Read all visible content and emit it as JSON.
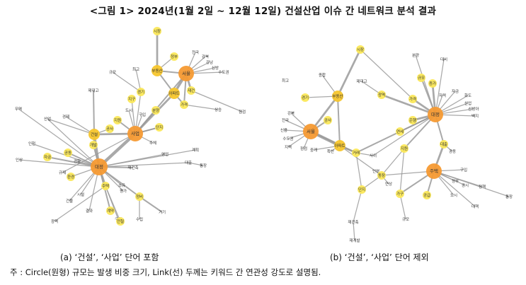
{
  "title": "<그림 1> 2024년(1월 2일 ~ 12월 12일) 건설산업 이슈 간 네트워크 분석 결과",
  "captions": {
    "a": "(a) ‘건설’, ‘사업’ 단어 포함",
    "b": "(b) ‘건설’, ‘사업’ 단어 제외"
  },
  "note": "주 : Circle(원형) 규모는 발생 비중 크기, Link(선) 두께는 키워드 간 연관성 강도로 설명됨.",
  "colors": {
    "hub": "#f59a33",
    "mid": "#f7c62d",
    "small": "#fbe85a",
    "edge": "#9a9a9a",
    "label": "#333333"
  },
  "graph_a": {
    "nodes": [
      {
        "id": "a_sijang",
        "label": "시장",
        "size": 1
      },
      {
        "id": "a_jeongbu",
        "label": "정부",
        "size": 1
      },
      {
        "id": "a_bubyeon",
        "label": "부동산",
        "size": 2
      },
      {
        "id": "a_seoul",
        "label": "서울",
        "size": 3
      },
      {
        "id": "a_jeonguk",
        "label": "전국",
        "size": 0
      },
      {
        "id": "a_gangbuk",
        "label": "강북",
        "size": 0
      },
      {
        "id": "a_gangnam",
        "label": "강남",
        "size": 0
      },
      {
        "id": "a_sinbang",
        "label": "신방",
        "size": 0
      },
      {
        "id": "a_sudogwon",
        "label": "수도권",
        "size": 0
      },
      {
        "id": "a_aparteu",
        "label": "아파트",
        "size": 2
      },
      {
        "id": "a_jaegeon",
        "label": "재건",
        "size": 1
      },
      {
        "id": "a_gagyeok",
        "label": "가격",
        "size": 1
      },
      {
        "id": "a_byeonghwa",
        "label": "상승",
        "size": 0
      },
      {
        "id": "a_jeomgeom",
        "label": "점검",
        "size": 0
      },
      {
        "id": "a_gyumo",
        "label": "규모",
        "size": 0
      },
      {
        "id": "a_choegoe",
        "label": "최고",
        "size": 0
      },
      {
        "id": "a_jedaego",
        "label": "제대고",
        "size": 0
      },
      {
        "id": "a_gyeonggi",
        "label": "경기",
        "size": 1
      },
      {
        "id": "a_jigu",
        "label": "지구",
        "size": 1
      },
      {
        "id": "a_bunyang",
        "label": "분양",
        "size": 1
      },
      {
        "id": "a_muyeok",
        "label": "무역",
        "size": 0
      },
      {
        "id": "a_sanup",
        "label": "산업",
        "size": 0
      },
      {
        "id": "a_gyeongje",
        "label": "경제",
        "size": 0
      },
      {
        "id": "a_jiwon",
        "label": "지원",
        "size": 1
      },
      {
        "id": "a_gongsa",
        "label": "공사",
        "size": 1
      },
      {
        "id": "a_doshi",
        "label": "도시",
        "size": 0
      },
      {
        "id": "a_gubuk",
        "label": "구입",
        "size": 0
      },
      {
        "id": "a_danji",
        "label": "단지",
        "size": 1
      },
      {
        "id": "a_geonseol",
        "label": "건설",
        "size": 2
      },
      {
        "id": "a_saeop",
        "label": "사업",
        "size": 3
      },
      {
        "id": "a_gaebal",
        "label": "개발",
        "size": 1
      },
      {
        "id": "a_juche",
        "label": "주체",
        "size": 0
      },
      {
        "id": "a_yeongeop",
        "label": "영업",
        "size": 0
      },
      {
        "id": "a_gyehoek",
        "label": "계획",
        "size": 0
      },
      {
        "id": "a_daechul",
        "label": "대출",
        "size": 0
      },
      {
        "id": "a_tongjang",
        "label": "통장",
        "size": 0
      },
      {
        "id": "a_ingyeon",
        "label": "인천",
        "size": 0
      },
      {
        "id": "a_insang",
        "label": "인상",
        "size": 0
      },
      {
        "id": "a_jigeum",
        "label": "자금",
        "size": 1
      },
      {
        "id": "a_gongdong",
        "label": "공동",
        "size": 1
      },
      {
        "id": "a_gyeonghyang",
        "label": "경향",
        "size": 0
      },
      {
        "id": "a_jaegeonchuk",
        "label": "재건축",
        "size": 0
      },
      {
        "id": "a_daejeong",
        "label": "대정",
        "size": 4
      },
      {
        "id": "a_gyuje",
        "label": "규제",
        "size": 0
      },
      {
        "id": "a_hwanyeong",
        "label": "환경",
        "size": 1
      },
      {
        "id": "a_jutaek",
        "label": "주택",
        "size": 1
      },
      {
        "id": "a_soyun",
        "label": "소유",
        "size": 0
      },
      {
        "id": "a_pyeongga",
        "label": "평가",
        "size": 0
      },
      {
        "id": "a_siseol",
        "label": "시설",
        "size": 0
      },
      {
        "id": "a_geonmul",
        "label": "건물",
        "size": 0
      },
      {
        "id": "a_gyeyak",
        "label": "계약",
        "size": 1
      },
      {
        "id": "a_jeongbi",
        "label": "정비",
        "size": 1
      },
      {
        "id": "a_gyeolgwa",
        "label": "결과",
        "size": 0
      },
      {
        "id": "a_guye",
        "label": "구역",
        "size": 0
      },
      {
        "id": "a_sujo",
        "label": "수립",
        "size": 0
      },
      {
        "id": "a_jeoncheol",
        "label": "전철",
        "size": 1
      },
      {
        "id": "a_gigi",
        "label": "기기",
        "size": 0
      },
      {
        "id": "a_gwangyeok",
        "label": "광역",
        "size": 0
      }
    ]
  },
  "graph_b": {
    "nodes": [
      {
        "id": "b_sijang",
        "label": "시장",
        "size": 1
      },
      {
        "id": "b_bunyang",
        "label": "분양",
        "size": 0
      },
      {
        "id": "b_daebi",
        "label": "대비",
        "size": 0
      },
      {
        "id": "b_gyumo",
        "label": "규모",
        "size": 1
      },
      {
        "id": "b_jeungga",
        "label": "증가",
        "size": 1
      },
      {
        "id": "b_choegoe",
        "label": "최고",
        "size": 0
      },
      {
        "id": "b_jongham",
        "label": "종합",
        "size": 0
      },
      {
        "id": "b_jedaego",
        "label": "제대고",
        "size": 0
      },
      {
        "id": "b_bubyeon",
        "label": "부동산",
        "size": 2
      },
      {
        "id": "b_gwanguk",
        "label": "광역",
        "size": 1
      },
      {
        "id": "b_jageum",
        "label": "자금",
        "size": 0
      },
      {
        "id": "b_jaryo",
        "label": "자력",
        "size": 0
      },
      {
        "id": "b_hwado",
        "label": "화도",
        "size": 0
      },
      {
        "id": "b_sanup",
        "label": "산업",
        "size": 0
      },
      {
        "id": "b_sinbang",
        "label": "신방아",
        "size": 0
      },
      {
        "id": "b_baekji",
        "label": "백지",
        "size": 0
      },
      {
        "id": "b_gyeonggi",
        "label": "경기",
        "size": 1
      },
      {
        "id": "b_gagyeok",
        "label": "가격",
        "size": 1
      },
      {
        "id": "b_daejeong",
        "label": "대정",
        "size": 3
      },
      {
        "id": "b_gangbuk",
        "label": "강북",
        "size": 0
      },
      {
        "id": "b_jeonguk",
        "label": "전국",
        "size": 0
      },
      {
        "id": "b_sinyong",
        "label": "신용",
        "size": 0
      },
      {
        "id": "b_sudogwon",
        "label": "수도권",
        "size": 0
      },
      {
        "id": "b_jiyeok",
        "label": "지역",
        "size": 0
      },
      {
        "id": "b_gongsa",
        "label": "공사",
        "size": 1
      },
      {
        "id": "b_seoul",
        "label": "서울",
        "size": 3
      },
      {
        "id": "b_jeomgeom",
        "label": "점검",
        "size": 0
      },
      {
        "id": "b_apateu",
        "label": "아파트",
        "size": 2
      },
      {
        "id": "b_junggae",
        "label": "중개",
        "size": 0
      },
      {
        "id": "b_hwaksan",
        "label": "확산",
        "size": 0
      },
      {
        "id": "b_geoje",
        "label": "거래",
        "size": 1
      },
      {
        "id": "b_eunhaeng",
        "label": "은행",
        "size": 1
      },
      {
        "id": "b_yeonse",
        "label": "연세",
        "size": 1
      },
      {
        "id": "b_daechul",
        "label": "대출",
        "size": 1
      },
      {
        "id": "b_jiwon",
        "label": "지원",
        "size": 1
      },
      {
        "id": "b_gongdong",
        "label": "공동",
        "size": 0
      },
      {
        "id": "b_sai",
        "label": "사이",
        "size": 0
      },
      {
        "id": "b_inyeong",
        "label": "인영",
        "size": 0
      },
      {
        "id": "b_dongjang",
        "label": "동장",
        "size": 1
      },
      {
        "id": "b_yeonsang",
        "label": "연상",
        "size": 0
      },
      {
        "id": "b_jutaek",
        "label": "주택",
        "size": 3
      },
      {
        "id": "b_guip",
        "label": "구입",
        "size": 0
      },
      {
        "id": "b_jeongbu",
        "label": "정부",
        "size": 0
      },
      {
        "id": "b_danji",
        "label": "단지",
        "size": 1
      },
      {
        "id": "b_gagu",
        "label": "가구",
        "size": 1
      },
      {
        "id": "b_gonggeup",
        "label": "공급",
        "size": 1
      },
      {
        "id": "b_doshi",
        "label": "도시",
        "size": 0
      },
      {
        "id": "b_gongsi",
        "label": "공시",
        "size": 0
      },
      {
        "id": "b_jeongchaek",
        "label": "정책",
        "size": 0
      },
      {
        "id": "b_daechaek",
        "label": "대책",
        "size": 0
      },
      {
        "id": "b_tongjang",
        "label": "통장",
        "size": 0
      },
      {
        "id": "b_gyumo2",
        "label": "규모",
        "size": 0
      },
      {
        "id": "b_jaegeonchuk",
        "label": "재건축",
        "size": 0
      },
      {
        "id": "b_jaegaebal",
        "label": "재개발",
        "size": 0
      }
    ]
  }
}
